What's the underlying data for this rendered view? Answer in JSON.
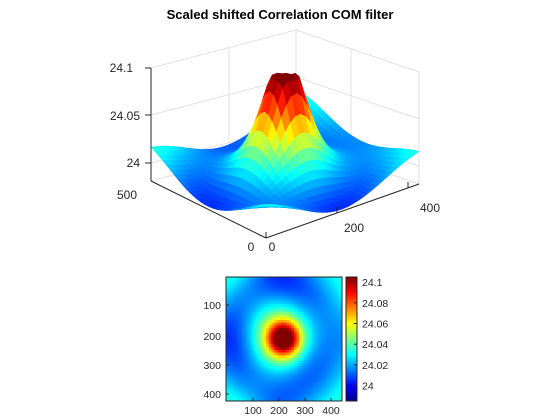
{
  "chart_data": [
    {
      "type": "surface",
      "title": "Scaled shifted Correlation COM filter",
      "xlim": [
        0,
        430
      ],
      "ylim": [
        0,
        500
      ],
      "zlim": [
        23.97,
        24.1
      ],
      "x_ticks": [
        "0",
        "200",
        "400"
      ],
      "y_ticks": [
        "0",
        "500"
      ],
      "z_ticks": [
        "24",
        "24.05",
        "24.1"
      ],
      "z_range": [
        23.97,
        24.1
      ],
      "peak": {
        "x": 215,
        "y": 215,
        "z": 24.1
      },
      "colormap": "jet",
      "grid": true
    },
    {
      "type": "heatmap",
      "title": "",
      "xlim": [
        0,
        430
      ],
      "ylim": [
        0,
        430
      ],
      "y_reversed": true,
      "x_ticks": [
        "100",
        "200",
        "300",
        "400"
      ],
      "y_ticks": [
        "100",
        "200",
        "300",
        "400"
      ],
      "peak": {
        "x": 215,
        "y": 215,
        "z": 24.1
      },
      "colormap": "jet",
      "colorbar": {
        "ticks": [
          "24",
          "24.02",
          "24.04",
          "24.06",
          "24.08",
          "24.1"
        ],
        "range": [
          23.985,
          24.105
        ],
        "placement": "right"
      }
    }
  ]
}
